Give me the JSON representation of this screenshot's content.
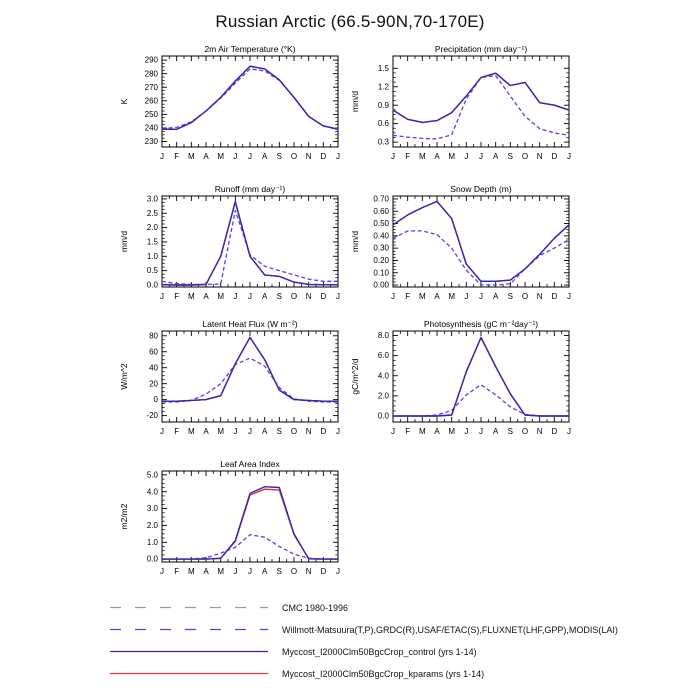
{
  "title": "Russian Arctic (66.5-90N,70-170E)",
  "months": [
    "J",
    "F",
    "M",
    "A",
    "M",
    "J",
    "J",
    "A",
    "S",
    "O",
    "N",
    "D",
    "J"
  ],
  "colors": {
    "cmc_gray": "#9A9A9A",
    "obs_blue": "#4747E8",
    "control_blue": "#2929BC",
    "kparams_red": "#E03434"
  },
  "chart_data": [
    {
      "id": "temp",
      "type": "line",
      "title": "2m Air Temperature (°K)",
      "ylabel": "K",
      "ylim": [
        226,
        293
      ],
      "yticks": {
        "values": [
          230,
          240,
          250,
          260,
          270,
          280,
          290
        ],
        "labels": [
          "230",
          "240",
          "250",
          "260",
          "270",
          "280",
          "290"
        ]
      },
      "series": [
        {
          "name": "obs",
          "style": "dashed",
          "color": "#4747E8",
          "values": [
            239.5,
            240.5,
            244.5,
            252.5,
            262.0,
            273.0,
            283.5,
            282.0,
            275.0,
            262.5,
            248.5,
            241.5,
            239.5
          ]
        },
        {
          "name": "kparams",
          "style": "solid",
          "color": "#E03434",
          "values": [
            239.0,
            239.0,
            244.0,
            252.5,
            262.5,
            274.5,
            285.5,
            283.5,
            275.5,
            262.5,
            248.5,
            241.5,
            239.0
          ]
        },
        {
          "name": "control",
          "style": "solid",
          "color": "#2929BC",
          "values": [
            239.0,
            239.0,
            244.0,
            252.5,
            262.5,
            274.5,
            285.5,
            283.5,
            275.5,
            262.5,
            248.5,
            241.5,
            239.0
          ]
        }
      ]
    },
    {
      "id": "precip",
      "type": "line",
      "title": "Precipitation (mm day⁻¹)",
      "ylabel": "mm/d",
      "ylim": [
        0.22,
        1.7
      ],
      "yticks": {
        "values": [
          0.3,
          0.6,
          0.9,
          1.2,
          1.5
        ],
        "labels": [
          "0.3",
          "0.6",
          "0.9",
          "1.2",
          "1.5"
        ]
      },
      "series": [
        {
          "name": "obs",
          "style": "dashed",
          "color": "#4747E8",
          "values": [
            0.41,
            0.38,
            0.36,
            0.35,
            0.42,
            1.0,
            1.35,
            1.38,
            1.05,
            0.72,
            0.52,
            0.45,
            0.41
          ]
        },
        {
          "name": "kparams",
          "style": "solid",
          "color": "#E03434",
          "values": [
            0.82,
            0.67,
            0.62,
            0.65,
            0.78,
            1.05,
            1.35,
            1.42,
            1.22,
            1.27,
            0.94,
            0.9,
            0.82
          ]
        },
        {
          "name": "control",
          "style": "solid",
          "color": "#2929BC",
          "values": [
            0.82,
            0.67,
            0.62,
            0.65,
            0.78,
            1.05,
            1.35,
            1.42,
            1.22,
            1.27,
            0.94,
            0.9,
            0.82
          ]
        }
      ]
    },
    {
      "id": "runoff",
      "type": "line",
      "title": "Runoff (mm day⁻¹)",
      "ylabel": "mm/d",
      "ylim": [
        -0.07,
        3.1
      ],
      "yticks": {
        "values": [
          0.0,
          0.5,
          1.0,
          1.5,
          2.0,
          2.5,
          3.0
        ],
        "labels": [
          "0.0",
          "0.5",
          "1.0",
          "1.5",
          "2.0",
          "2.5",
          "3.0"
        ]
      },
      "series": [
        {
          "name": "obs",
          "style": "dashed",
          "color": "#4747E8",
          "values": [
            0.13,
            0.05,
            0.02,
            0.02,
            0.03,
            2.6,
            1.05,
            0.65,
            0.5,
            0.35,
            0.2,
            0.13,
            0.13
          ]
        },
        {
          "name": "kparams",
          "style": "solid",
          "color": "#E03434",
          "values": [
            0.01,
            0.0,
            0.0,
            0.02,
            1.0,
            2.9,
            1.0,
            0.35,
            0.3,
            0.1,
            0.02,
            0.01,
            0.01
          ]
        },
        {
          "name": "control",
          "style": "solid",
          "color": "#2929BC",
          "values": [
            0.01,
            0.0,
            0.0,
            0.02,
            1.0,
            2.9,
            1.0,
            0.35,
            0.3,
            0.1,
            0.02,
            0.01,
            0.01
          ]
        }
      ]
    },
    {
      "id": "snow",
      "type": "line",
      "title": "Snow Depth (m)",
      "ylabel": "mm/d",
      "ylim": [
        -0.016,
        0.724
      ],
      "yticks": {
        "values": [
          0.0,
          0.1,
          0.2,
          0.3,
          0.4,
          0.5,
          0.6,
          0.7
        ],
        "labels": [
          "0.00",
          "0.10",
          "0.20",
          "0.30",
          "0.40",
          "0.50",
          "0.60",
          "0.70"
        ]
      },
      "series": [
        {
          "name": "obs",
          "style": "dashed",
          "color": "#4747E8",
          "values": [
            0.38,
            0.44,
            0.44,
            0.41,
            0.3,
            0.12,
            0.0,
            0.0,
            0.01,
            0.13,
            0.24,
            0.3,
            0.37
          ]
        },
        {
          "name": "kparams",
          "style": "solid",
          "color": "#E03434",
          "values": [
            0.49,
            0.57,
            0.63,
            0.68,
            0.54,
            0.17,
            0.03,
            0.03,
            0.04,
            0.13,
            0.25,
            0.38,
            0.49
          ]
        },
        {
          "name": "control",
          "style": "solid",
          "color": "#2929BC",
          "values": [
            0.49,
            0.57,
            0.63,
            0.68,
            0.54,
            0.17,
            0.03,
            0.03,
            0.04,
            0.13,
            0.25,
            0.38,
            0.49
          ]
        }
      ]
    },
    {
      "id": "lhf",
      "type": "line",
      "title": "Latent Heat Flux (W m⁻²)",
      "ylabel": "W/m^2",
      "ylim": [
        -28,
        86
      ],
      "yticks": {
        "values": [
          -20,
          0,
          20,
          40,
          60,
          80
        ],
        "labels": [
          "-20",
          "0",
          "20",
          "40",
          "60",
          "80"
        ]
      },
      "series": [
        {
          "name": "obs",
          "style": "dashed",
          "color": "#4747E8",
          "values": [
            -3,
            -3,
            -1,
            7,
            20,
            44,
            52,
            42,
            15,
            1,
            -2,
            -3,
            -3
          ]
        },
        {
          "name": "kparams",
          "style": "solid",
          "color": "#E03434",
          "values": [
            -2,
            -2,
            -1,
            0,
            5,
            45,
            78,
            50,
            12,
            0,
            -1,
            -2,
            -2
          ]
        },
        {
          "name": "control",
          "style": "solid",
          "color": "#2929BC",
          "values": [
            -2,
            -2,
            -1,
            0,
            5,
            45,
            78,
            50,
            12,
            0,
            -1,
            -2,
            -2
          ]
        }
      ]
    },
    {
      "id": "photo",
      "type": "line",
      "title": "Photosynthesis (gC m⁻²day⁻¹)",
      "ylabel": "gC/m^2/d",
      "ylim": [
        -0.6,
        8.45
      ],
      "yticks": {
        "values": [
          0.0,
          2.0,
          4.0,
          6.0,
          8.0
        ],
        "labels": [
          "0.0",
          "2.0",
          "4.0",
          "6.0",
          "8.0"
        ]
      },
      "series": [
        {
          "name": "obs",
          "style": "dashed",
          "color": "#4747E8",
          "values": [
            0.0,
            0.0,
            0.0,
            0.1,
            0.55,
            2.1,
            3.1,
            2.1,
            0.9,
            0.15,
            0.0,
            0.0,
            0.0
          ]
        },
        {
          "name": "kparams",
          "style": "solid",
          "color": "#E03434",
          "values": [
            0.0,
            0.0,
            0.0,
            0.0,
            0.1,
            4.4,
            7.8,
            4.9,
            2.2,
            0.1,
            0.0,
            0.0,
            0.0
          ]
        },
        {
          "name": "control",
          "style": "solid",
          "color": "#2929BC",
          "values": [
            0.0,
            0.0,
            0.0,
            0.0,
            0.1,
            4.4,
            7.8,
            4.9,
            2.2,
            0.1,
            0.0,
            0.0,
            0.0
          ]
        }
      ]
    },
    {
      "id": "lai",
      "type": "line",
      "title": "Leaf Area Index",
      "ylabel": "m2/m2",
      "ylim": [
        -0.17,
        5.23
      ],
      "yticks": {
        "values": [
          0.0,
          1.0,
          2.0,
          3.0,
          4.0,
          5.0
        ],
        "labels": [
          "0.0",
          "1.0",
          "2.0",
          "3.0",
          "4.0",
          "5.0"
        ]
      },
      "series": [
        {
          "name": "obs",
          "style": "dashed",
          "color": "#4747E8",
          "values": [
            0.0,
            0.0,
            0.0,
            0.08,
            0.35,
            0.7,
            1.45,
            1.3,
            0.75,
            0.3,
            0.05,
            0.0,
            0.0
          ]
        },
        {
          "name": "kparams",
          "style": "solid",
          "color": "#E03434",
          "values": [
            0.0,
            0.0,
            0.0,
            0.0,
            0.05,
            1.05,
            3.8,
            4.15,
            4.1,
            1.45,
            0.02,
            0.0,
            0.0
          ]
        },
        {
          "name": "control",
          "style": "solid",
          "color": "#2929BC",
          "values": [
            0.0,
            0.0,
            0.0,
            0.0,
            0.05,
            1.1,
            3.9,
            4.3,
            4.25,
            1.5,
            0.02,
            0.0,
            0.0
          ]
        }
      ]
    }
  ],
  "legend": {
    "entries": [
      {
        "label": "CMC 1980-1996",
        "color": "#9A9A9A",
        "style": "dashed"
      },
      {
        "label": "Willmott-Matsuura(T,P),GRDC(R),USAF/ETAC(S),FLUXNET(LHF,GPP),MODIS(LAI)",
        "color": "#4747E8",
        "style": "dashed"
      },
      {
        "label": "Myccost_I2000Clm50BgcCrop_control (yrs 1-14)",
        "color": "#2929BC",
        "style": "solid"
      },
      {
        "label": "Myccost_I2000Clm50BgcCrop_kparams (yrs 1-14)",
        "color": "#E03434",
        "style": "solid"
      }
    ]
  }
}
